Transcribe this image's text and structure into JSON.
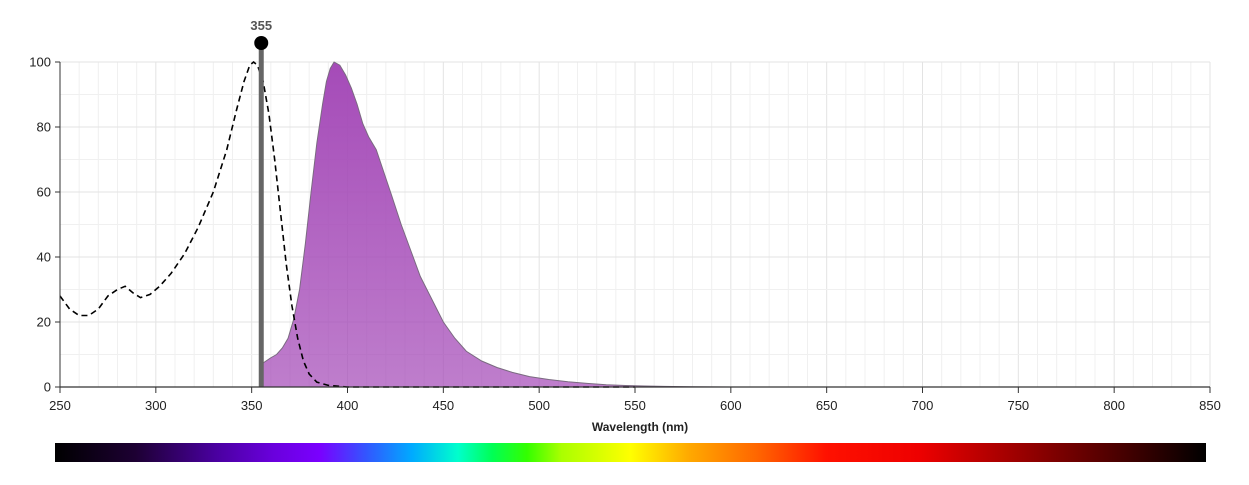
{
  "chart_data": {
    "type": "area",
    "xlabel": "Wavelength (nm)",
    "ylabel": "",
    "xlim": [
      250,
      850
    ],
    "ylim": [
      0,
      100
    ],
    "x_ticks": [
      250,
      300,
      350,
      400,
      450,
      500,
      550,
      600,
      650,
      700,
      750,
      800,
      850
    ],
    "y_ticks": [
      0,
      20,
      40,
      60,
      80,
      100
    ],
    "grid": true,
    "series": [
      {
        "kind": "excitation",
        "style": "dashed-line",
        "color": "#000000",
        "points": [
          [
            250,
            28
          ],
          [
            255,
            24
          ],
          [
            260,
            22
          ],
          [
            265,
            22
          ],
          [
            270,
            24
          ],
          [
            275,
            28
          ],
          [
            280,
            30
          ],
          [
            284,
            31
          ],
          [
            288,
            29
          ],
          [
            292,
            27.5
          ],
          [
            297,
            28.5
          ],
          [
            302,
            31
          ],
          [
            308,
            35
          ],
          [
            315,
            41
          ],
          [
            322,
            49
          ],
          [
            330,
            60
          ],
          [
            337,
            73
          ],
          [
            342,
            85
          ],
          [
            346,
            94
          ],
          [
            349,
            99
          ],
          [
            351,
            100
          ],
          [
            353,
            99
          ],
          [
            356,
            94
          ],
          [
            359,
            84
          ],
          [
            362,
            70
          ],
          [
            365,
            54
          ],
          [
            368,
            38
          ],
          [
            371,
            25
          ],
          [
            374,
            15
          ],
          [
            377,
            8
          ],
          [
            380,
            4
          ],
          [
            384,
            1.5
          ],
          [
            390,
            0.5
          ],
          [
            400,
            0
          ],
          [
            450,
            0
          ],
          [
            500,
            0
          ],
          [
            550,
            0
          ]
        ]
      },
      {
        "kind": "emission",
        "style": "filled-area",
        "color": "#a54bb8",
        "points": [
          [
            355,
            0
          ],
          [
            355,
            7
          ],
          [
            360,
            9
          ],
          [
            363,
            10
          ],
          [
            366,
            12
          ],
          [
            369,
            15
          ],
          [
            372,
            21
          ],
          [
            375,
            30
          ],
          [
            378,
            44
          ],
          [
            381,
            60
          ],
          [
            384,
            75
          ],
          [
            387,
            87
          ],
          [
            389,
            94
          ],
          [
            391,
            98
          ],
          [
            393,
            100
          ],
          [
            396,
            99
          ],
          [
            399,
            96
          ],
          [
            402,
            92
          ],
          [
            405,
            87
          ],
          [
            408,
            81
          ],
          [
            411,
            77
          ],
          [
            415,
            73
          ],
          [
            419,
            66
          ],
          [
            423,
            59
          ],
          [
            428,
            50
          ],
          [
            433,
            42
          ],
          [
            438,
            34
          ],
          [
            444,
            27
          ],
          [
            450,
            20
          ],
          [
            456,
            15
          ],
          [
            462,
            11
          ],
          [
            470,
            8
          ],
          [
            478,
            6
          ],
          [
            486,
            4.5
          ],
          [
            495,
            3.2
          ],
          [
            505,
            2.3
          ],
          [
            515,
            1.6
          ],
          [
            525,
            1.1
          ],
          [
            535,
            0.7
          ],
          [
            545,
            0.45
          ],
          [
            555,
            0.3
          ],
          [
            565,
            0.18
          ],
          [
            580,
            0.08
          ],
          [
            600,
            0
          ]
        ]
      }
    ],
    "marker": {
      "wavelength": 355,
      "label": "355",
      "color": "#666666"
    },
    "color_strip": {
      "stops": [
        {
          "pos": 0.0,
          "color": "#000000"
        },
        {
          "pos": 0.07,
          "color": "#1d0033"
        },
        {
          "pos": 0.14,
          "color": "#4a00a0"
        },
        {
          "pos": 0.19,
          "color": "#6a00dd"
        },
        {
          "pos": 0.23,
          "color": "#7a00ff"
        },
        {
          "pos": 0.27,
          "color": "#3355ff"
        },
        {
          "pos": 0.31,
          "color": "#00aaff"
        },
        {
          "pos": 0.35,
          "color": "#00ffcc"
        },
        {
          "pos": 0.38,
          "color": "#00ff55"
        },
        {
          "pos": 0.41,
          "color": "#33ff00"
        },
        {
          "pos": 0.44,
          "color": "#aaff00"
        },
        {
          "pos": 0.5,
          "color": "#ffff00"
        },
        {
          "pos": 0.55,
          "color": "#ffaa00"
        },
        {
          "pos": 0.61,
          "color": "#ff6600"
        },
        {
          "pos": 0.67,
          "color": "#ff1100"
        },
        {
          "pos": 0.75,
          "color": "#ee0000"
        },
        {
          "pos": 0.84,
          "color": "#990000"
        },
        {
          "pos": 0.93,
          "color": "#440000"
        },
        {
          "pos": 1.0,
          "color": "#000000"
        }
      ]
    }
  }
}
